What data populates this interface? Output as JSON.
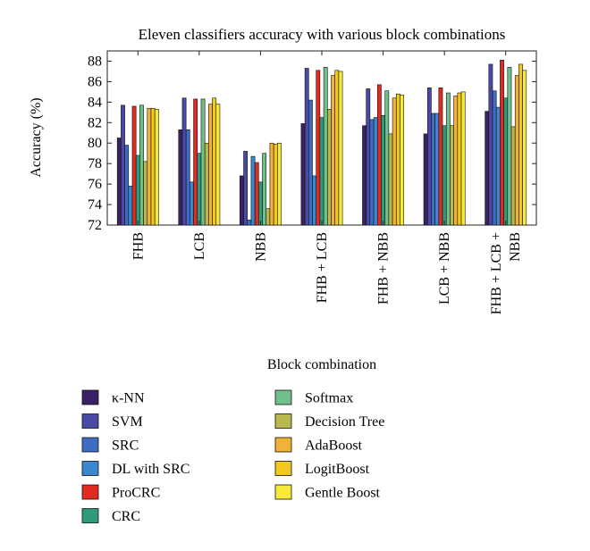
{
  "chart_data": {
    "type": "bar",
    "title": "Eleven classifiers accuracy with various block combinations",
    "xlabel": "Block combination",
    "ylabel": "Accuracy (%)",
    "ylim": [
      72,
      89
    ],
    "yticks": [
      72,
      74,
      76,
      78,
      80,
      82,
      84,
      86,
      88
    ],
    "categories": [
      "FHB",
      "LCB",
      "NBB",
      "FHB + LCB",
      "FHB + NBB",
      "LCB + NBB",
      "FHB + LCB + NBB"
    ],
    "category_lines": [
      [
        "FHB"
      ],
      [
        "LCB"
      ],
      [
        "NBB"
      ],
      [
        "FHB + LCB"
      ],
      [
        "FHB + NBB"
      ],
      [
        "LCB + NBB"
      ],
      [
        "FHB + LCB +",
        "NBB"
      ]
    ],
    "legend_placement": "bottom",
    "series": [
      {
        "name": "κ-NN",
        "color": "#3b2063",
        "values": [
          80.5,
          81.3,
          76.8,
          81.9,
          81.7,
          80.9,
          83.1
        ]
      },
      {
        "name": "SVM",
        "color": "#4a4aa6",
        "values": [
          83.7,
          84.4,
          79.2,
          87.3,
          85.3,
          85.4,
          87.7
        ]
      },
      {
        "name": "SRC",
        "color": "#3f6cc2",
        "values": [
          79.8,
          81.3,
          72.5,
          84.2,
          82.3,
          82.9,
          85.1
        ]
      },
      {
        "name": "DL with SRC",
        "color": "#3a88cf",
        "values": [
          75.8,
          76.2,
          78.7,
          76.8,
          82.5,
          82.9,
          83.5
        ]
      },
      {
        "name": "ProCRC",
        "color": "#e02a22",
        "values": [
          83.6,
          84.3,
          78.1,
          87.1,
          85.7,
          85.4,
          88.1
        ]
      },
      {
        "name": "CRC",
        "color": "#2f9b7c",
        "values": [
          78.8,
          79.0,
          76.2,
          82.5,
          82.7,
          81.7,
          84.4
        ]
      },
      {
        "name": "Softmax",
        "color": "#6fc08a",
        "values": [
          83.7,
          84.3,
          79.0,
          87.4,
          85.1,
          84.9,
          87.4
        ]
      },
      {
        "name": "Decision Tree",
        "color": "#b8b84e",
        "values": [
          78.2,
          80.0,
          73.6,
          83.3,
          80.9,
          81.7,
          81.6
        ]
      },
      {
        "name": "AdaBoost",
        "color": "#f2b23a",
        "values": [
          83.4,
          83.8,
          80.0,
          86.6,
          84.4,
          84.6,
          86.6
        ]
      },
      {
        "name": "LogitBoost",
        "color": "#f2c81e",
        "values": [
          83.4,
          84.4,
          79.9,
          87.1,
          84.8,
          84.9,
          87.7
        ]
      },
      {
        "name": "Gentle Boost",
        "color": "#f6ea3a",
        "values": [
          83.3,
          83.8,
          80.0,
          87.0,
          84.7,
          85.0,
          87.1
        ]
      }
    ]
  }
}
